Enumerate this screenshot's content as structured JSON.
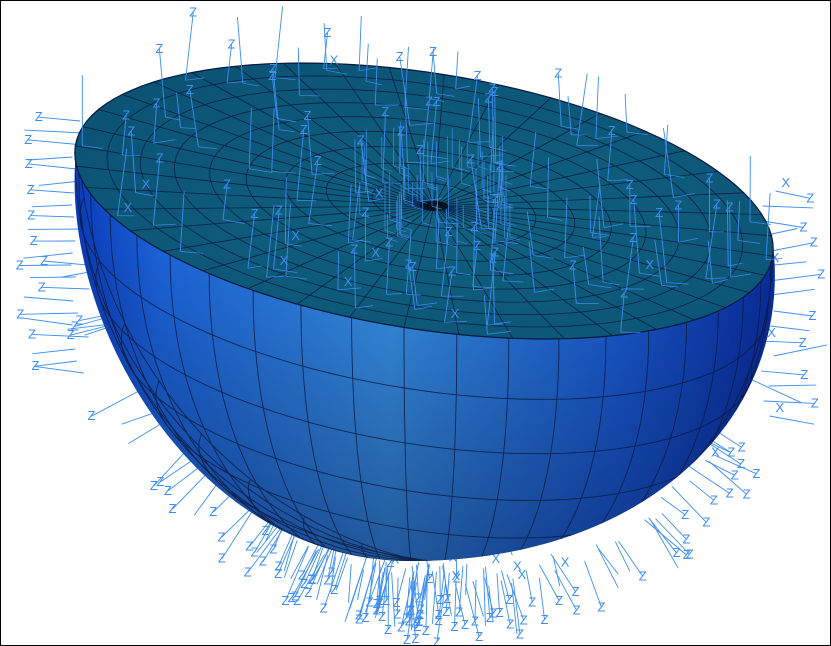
{
  "scene": {
    "object": "hemisphere-mesh",
    "colors": {
      "cap_face": "#0d5a7e",
      "side_light": "#3aa0ff",
      "side_mid": "#1f74f0",
      "side_dark": "#0a35b8",
      "mesh_line": "#0b1a40",
      "axis_triad": "#3d8ef0"
    },
    "axis_label_z": "Z",
    "axis_label_x": "X"
  }
}
